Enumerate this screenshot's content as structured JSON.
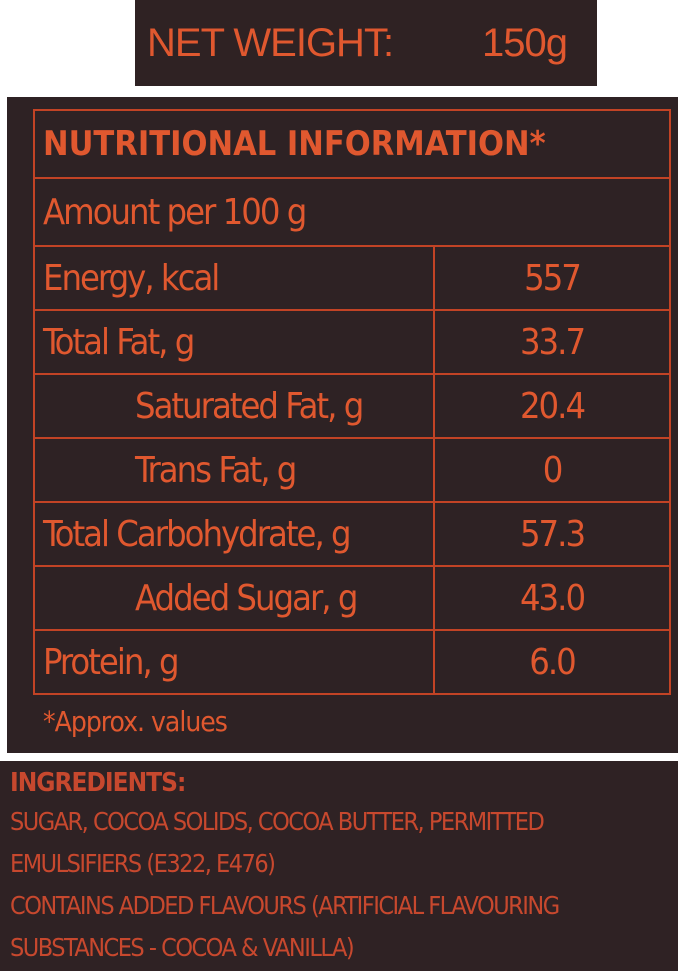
{
  "net_weight": {
    "label": "NET WEIGHT:",
    "value": "150g"
  },
  "nutrition": {
    "title": "NUTRITIONAL INFORMATION*",
    "amount_per": "Amount per 100 g",
    "rows": [
      {
        "label": "Energy, kcal",
        "value": "557"
      },
      {
        "label": "Total Fat, g",
        "value": "33.7"
      },
      {
        "label": "Saturated Fat, g",
        "value": "20.4"
      },
      {
        "label": "Trans Fat, g",
        "value": "0"
      },
      {
        "label": "Total Carbohydrate, g",
        "value": "57.3"
      },
      {
        "label": "Added Sugar, g",
        "value": "43.0"
      },
      {
        "label": "Protein, g",
        "value": "6.0"
      }
    ],
    "footnote": "*Approx. values"
  },
  "ingredients": {
    "heading": "INGREDIENTS:",
    "lines": [
      "SUGAR, COCOA SOLIDS, COCOA BUTTER, PERMITTED",
      "EMULSIFIERS (E322, E476)",
      "CONTAINS ADDED FLAVOURS (ARTIFICIAL FLAVOURING",
      "SUBSTANCES - COCOA & VANILLA)"
    ]
  },
  "colors": {
    "background_dark": "#2e2224",
    "text_orange": "#e0582f",
    "border_orange": "#c24325"
  }
}
